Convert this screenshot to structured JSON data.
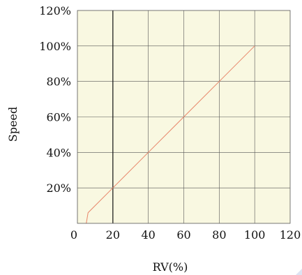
{
  "chart_data": {
    "type": "line",
    "xlabel": "RV(%)",
    "ylabel": "Speed",
    "xlim": [
      0,
      120
    ],
    "ylim": [
      0,
      120
    ],
    "x_ticks": [
      0,
      20,
      40,
      60,
      80,
      100,
      120
    ],
    "x_tick_labels": [
      "0",
      "20",
      "40",
      "60",
      "80",
      "100",
      "120"
    ],
    "y_ticks": [
      20,
      40,
      60,
      80,
      100,
      120
    ],
    "y_tick_labels": [
      "20%",
      "40%",
      "60%",
      "80%",
      "100%",
      "120%"
    ],
    "grid": true,
    "reference_line_x": 20,
    "series": [
      {
        "x": [
          5,
          6,
          20,
          40,
          60,
          80,
          100
        ],
        "y": [
          0,
          6,
          20,
          40,
          60,
          80,
          100
        ]
      }
    ]
  },
  "colors": {
    "plot_background": "#f9f8e1",
    "grid": "#555555",
    "series_line": "#e8866a",
    "reference_line": "#111111",
    "corner_mark": "#dde3f2"
  }
}
